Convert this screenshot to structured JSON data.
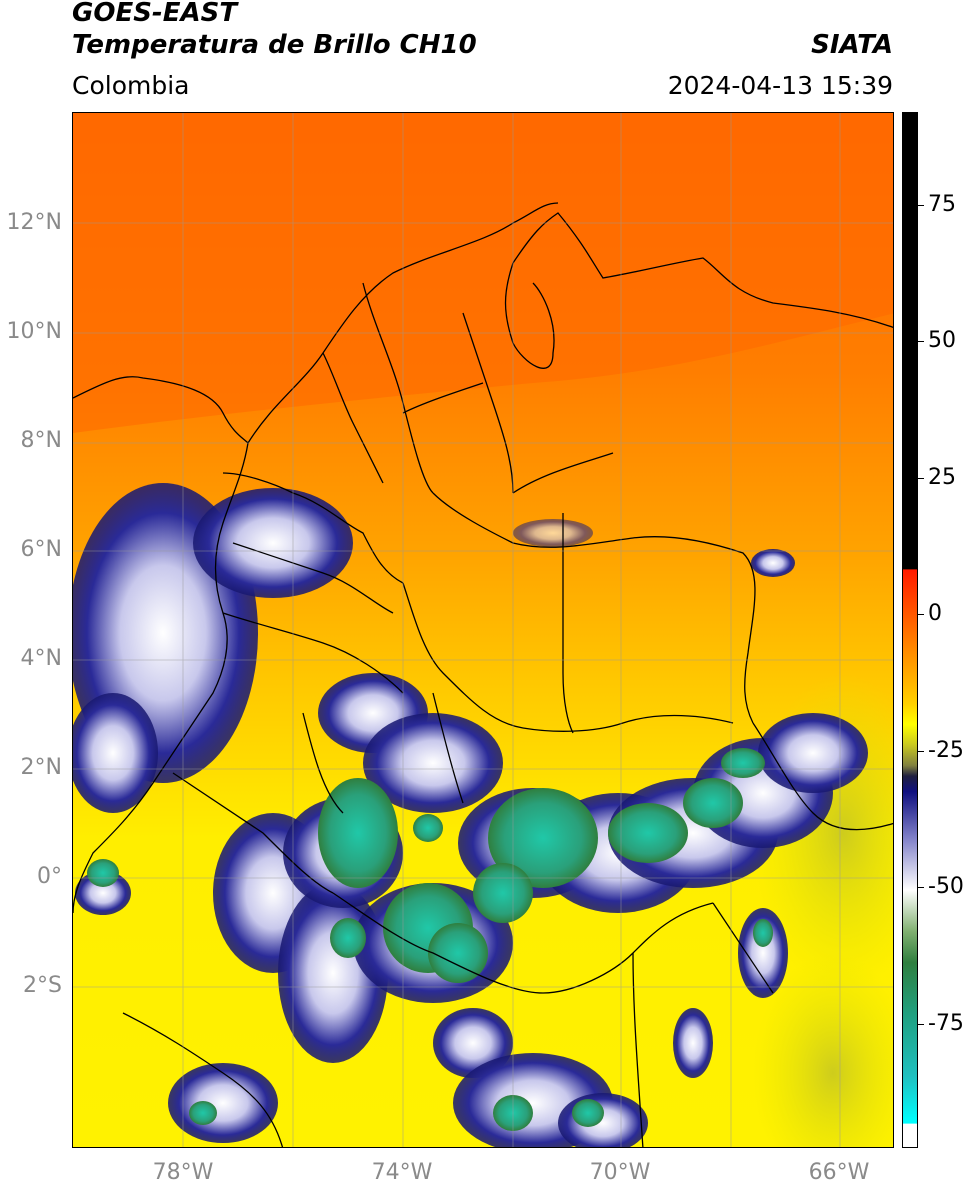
{
  "header": {
    "satellite": "GOES-EAST",
    "product": "Temperatura de Brillo CH10",
    "brand": "SIATA",
    "region": "Colombia",
    "timestamp": "2024-04-13 15:39"
  },
  "map": {
    "latitude_labels": [
      "12°N",
      "10°N",
      "8°N",
      "6°N",
      "4°N",
      "2°N",
      "0°",
      "2°S"
    ],
    "longitude_labels": [
      "78°W",
      "74°W",
      "70°W",
      "66°W"
    ]
  },
  "colorbar": {
    "tick_labels": [
      "75",
      "50",
      "25",
      "0",
      "-25",
      "-50",
      "-75"
    ],
    "colors": {
      "black": "#000000",
      "red": "#ff1a00",
      "orange": "#ff8c00",
      "yellow": "#ffff00",
      "olive": "#808040",
      "navy": "#101080",
      "white": "#ffffff",
      "green": "#2f7f3f",
      "teal": "#20c0a0",
      "cyan": "#00ffff"
    }
  }
}
